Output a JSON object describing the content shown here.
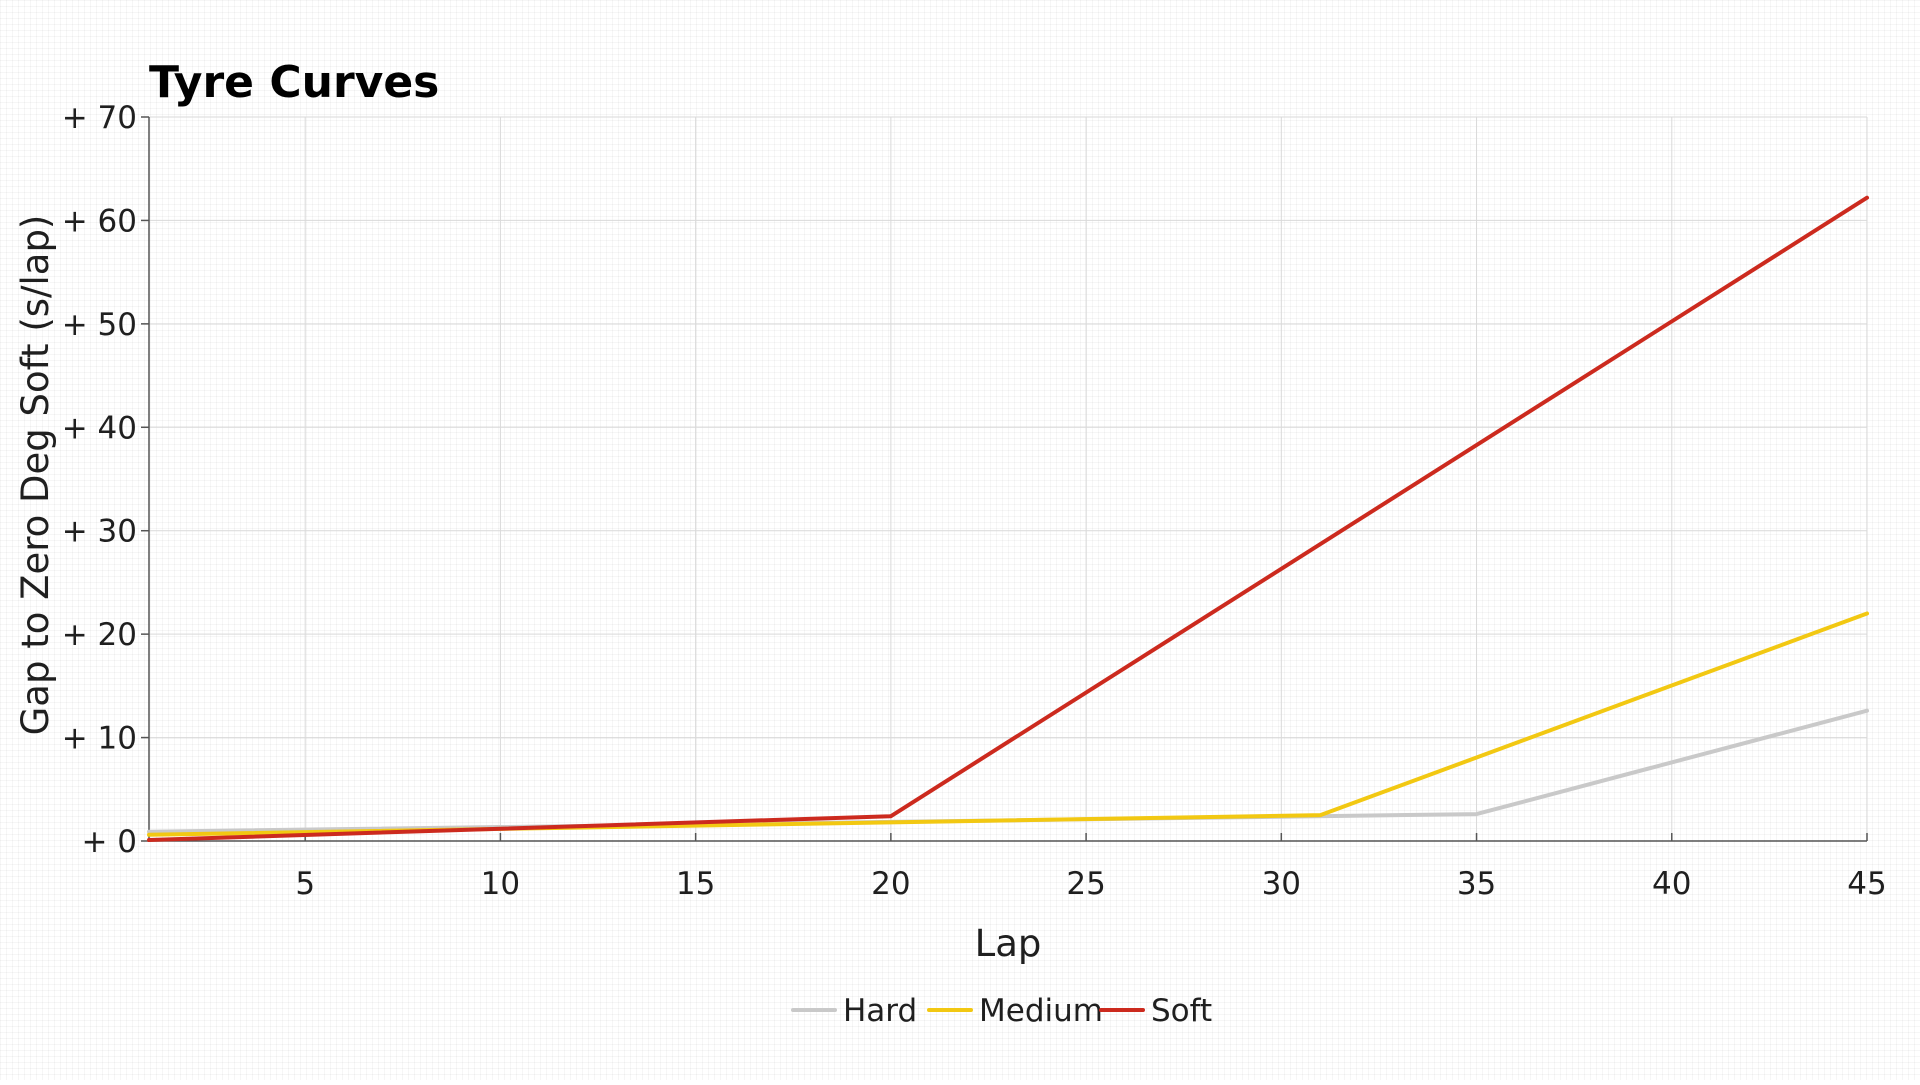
{
  "chart_data": {
    "type": "line",
    "title": "Tyre Curves",
    "xlabel": "Lap",
    "ylabel": "Gap to Zero Deg Soft (s/lap)",
    "xlim": [
      1,
      45
    ],
    "ylim": [
      0,
      70
    ],
    "x_ticks": [
      5,
      10,
      15,
      20,
      25,
      30,
      35,
      40,
      45
    ],
    "y_ticks": [
      0,
      10,
      20,
      30,
      40,
      50,
      60,
      70
    ],
    "y_tick_labels": [
      "+ 0",
      "+ 10",
      "+ 20",
      "+ 30",
      "+ 40",
      "+ 50",
      "+ 60",
      "+ 70"
    ],
    "grid": true,
    "legend_position": "bottom-center",
    "series": [
      {
        "name": "Hard",
        "color": "#c9c9c9",
        "points": [
          [
            1,
            0.9
          ],
          [
            35,
            2.6
          ],
          [
            45,
            12.6
          ]
        ]
      },
      {
        "name": "Medium",
        "color": "#f2c812",
        "points": [
          [
            1,
            0.6
          ],
          [
            20,
            1.8
          ],
          [
            31,
            2.5
          ],
          [
            45,
            22.0
          ]
        ]
      },
      {
        "name": "Soft",
        "color": "#cc2a1e",
        "points": [
          [
            1,
            0.1
          ],
          [
            20,
            2.4
          ],
          [
            45,
            62.2
          ]
        ]
      }
    ]
  }
}
